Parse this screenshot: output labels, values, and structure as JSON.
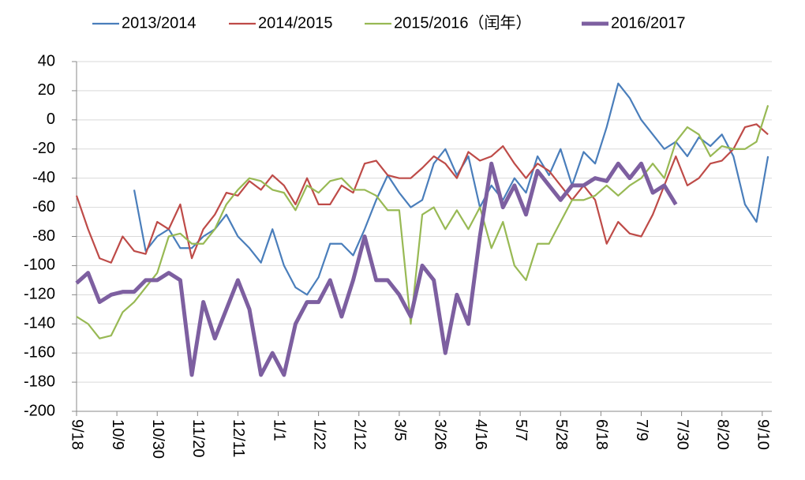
{
  "chart_data": {
    "type": "line",
    "x": [
      0,
      6,
      12,
      18,
      24,
      30,
      36,
      42,
      48,
      54,
      60,
      66,
      72,
      78,
      84,
      90,
      96,
      102,
      108,
      114,
      120,
      126,
      132,
      138,
      144,
      150,
      156,
      162,
      168,
      174,
      180,
      186,
      192,
      198,
      204,
      210,
      216,
      222,
      228,
      234,
      240,
      246,
      252,
      258,
      264,
      270,
      276,
      282,
      288,
      294,
      300,
      306,
      312,
      318,
      324,
      330,
      336,
      342,
      348,
      354,
      360
    ],
    "series": [
      {
        "name": "2013/2014",
        "color": "#4a7ebb",
        "width": 2.2,
        "values": [
          null,
          null,
          null,
          null,
          null,
          -48,
          -90,
          -80,
          -75,
          -88,
          -88,
          -80,
          -75,
          -65,
          -80,
          -88,
          -98,
          -75,
          -100,
          -115,
          -120,
          -108,
          -85,
          -85,
          -93,
          -75,
          -55,
          -38,
          -50,
          -60,
          -55,
          -30,
          -20,
          -38,
          -25,
          -60,
          -45,
          -55,
          -40,
          -50,
          -25,
          -38,
          -20,
          -45,
          -22,
          -30,
          -5,
          25,
          15,
          0,
          -10,
          -20,
          -15,
          -25,
          -12,
          -18,
          -10,
          -25,
          -58,
          -70,
          -25
        ]
      },
      {
        "name": "2014/2015",
        "color": "#be4b48",
        "width": 2.2,
        "values": [
          -52,
          -75,
          -95,
          -98,
          -80,
          -90,
          -92,
          -70,
          -75,
          -58,
          -95,
          -75,
          -65,
          -50,
          -52,
          -42,
          -48,
          -38,
          -45,
          -58,
          -40,
          -58,
          -58,
          -45,
          -50,
          -30,
          -28,
          -38,
          -40,
          -40,
          -33,
          -25,
          -30,
          -40,
          -22,
          -28,
          -25,
          -18,
          -30,
          -40,
          -30,
          -35,
          -45,
          -55,
          -45,
          -55,
          -85,
          -70,
          -78,
          -80,
          -65,
          -45,
          -25,
          -45,
          -40,
          -30,
          -28,
          -20,
          -5,
          -3,
          -10
        ]
      },
      {
        "name": "2015/2016（闰年）",
        "color": "#98b954",
        "width": 2.2,
        "values": [
          -135,
          -140,
          -150,
          -148,
          -132,
          -125,
          -115,
          -105,
          -80,
          -78,
          -85,
          -85,
          -75,
          -58,
          -48,
          -40,
          -42,
          -48,
          -50,
          -62,
          -45,
          -50,
          -42,
          -40,
          -48,
          -48,
          -52,
          -62,
          -62,
          -140,
          -65,
          -60,
          -75,
          -62,
          -75,
          -60,
          -88,
          -70,
          -100,
          -110,
          -85,
          -85,
          -70,
          -55,
          -55,
          -52,
          -45,
          -52,
          -45,
          -40,
          -30,
          -40,
          -15,
          -5,
          -10,
          -25,
          -18,
          -20,
          -20,
          -15,
          10
        ]
      },
      {
        "name": "2016/2017",
        "color": "#7d5fa0",
        "width": 5,
        "values": [
          -112,
          -105,
          -125,
          -120,
          -118,
          -118,
          -110,
          -110,
          -105,
          -110,
          -175,
          -125,
          -150,
          -130,
          -110,
          -130,
          -175,
          -160,
          -175,
          -140,
          -125,
          -125,
          -110,
          -135,
          -110,
          -80,
          -110,
          -110,
          -120,
          -135,
          -100,
          -110,
          -160,
          -120,
          -140,
          -80,
          -30,
          -60,
          -45,
          -65,
          -35,
          -45,
          -55,
          -45,
          -45,
          -40,
          -42,
          -30,
          -40,
          -30,
          -50,
          -45,
          -58,
          null,
          null,
          null,
          null,
          null,
          null,
          null,
          null
        ]
      }
    ],
    "xlim": [
      0,
      362
    ],
    "xticks": [
      {
        "value": 0,
        "label": "9/18"
      },
      {
        "value": 21,
        "label": "10/9"
      },
      {
        "value": 42,
        "label": "10/30"
      },
      {
        "value": 63,
        "label": "11/20"
      },
      {
        "value": 84,
        "label": "12/11"
      },
      {
        "value": 105,
        "label": "1/1"
      },
      {
        "value": 126,
        "label": "1/22"
      },
      {
        "value": 147,
        "label": "2/12"
      },
      {
        "value": 168,
        "label": "3/5"
      },
      {
        "value": 189,
        "label": "3/26"
      },
      {
        "value": 210,
        "label": "4/16"
      },
      {
        "value": 231,
        "label": "5/7"
      },
      {
        "value": 252,
        "label": "5/28"
      },
      {
        "value": 273,
        "label": "6/18"
      },
      {
        "value": 294,
        "label": "7/9"
      },
      {
        "value": 315,
        "label": "7/30"
      },
      {
        "value": 336,
        "label": "8/20"
      },
      {
        "value": 357,
        "label": "9/10"
      }
    ],
    "ylim": [
      -200,
      40
    ],
    "yticks": [
      -200,
      -180,
      -160,
      -140,
      -120,
      -100,
      -80,
      -60,
      -40,
      -20,
      0,
      20,
      40
    ],
    "grid": true,
    "legend": "top"
  }
}
